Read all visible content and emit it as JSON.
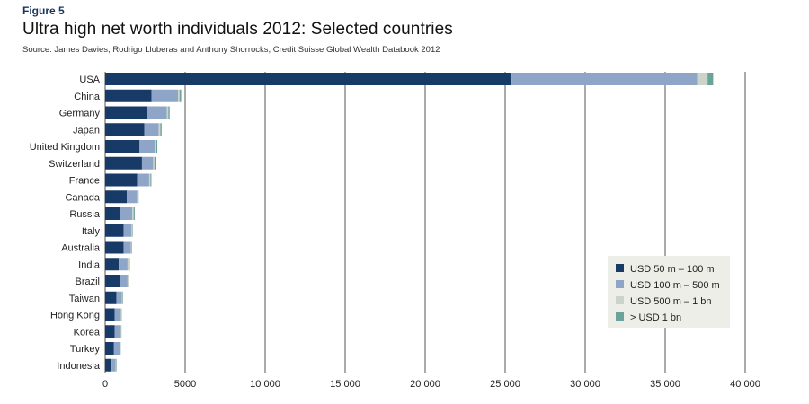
{
  "figure_label": "Figure 5",
  "title": "Ultra high net worth individuals 2012: Selected countries",
  "source": "Source: James Davies, Rodrigo Lluberas and Anthony Shorrocks, Credit Suisse Global Wealth Databook 2012",
  "colors": {
    "s1": "#173a66",
    "s2": "#8fa5c7",
    "s3": "#ccd3c9",
    "s4": "#6aa39a",
    "grid": "#555555",
    "legend_bg": "#eceee7"
  },
  "chart_data": {
    "type": "bar",
    "orientation": "horizontal",
    "stacked": true,
    "categories": [
      "USA",
      "China",
      "Germany",
      "Japan",
      "United Kingdom",
      "Switzerland",
      "France",
      "Canada",
      "Russia",
      "Italy",
      "Australia",
      "India",
      "Brazil",
      "Taiwan",
      "Hong Kong",
      "Korea",
      "Turkey",
      "Indonesia"
    ],
    "series": [
      {
        "name": "USD 50 m – 100 m",
        "values": [
          25400,
          2900,
          2600,
          2450,
          2150,
          2300,
          2000,
          1350,
          950,
          1150,
          1150,
          850,
          900,
          700,
          600,
          600,
          550,
          400
        ]
      },
      {
        "name": "USD 100 m – 500 m",
        "values": [
          11600,
          1650,
          1250,
          900,
          950,
          700,
          750,
          650,
          750,
          500,
          450,
          550,
          500,
          350,
          350,
          350,
          350,
          250
        ]
      },
      {
        "name": "USD 500 m – 1 bn",
        "values": [
          650,
          100,
          100,
          100,
          100,
          80,
          80,
          50,
          80,
          50,
          50,
          80,
          60,
          40,
          40,
          40,
          40,
          40
        ]
      },
      {
        "name": "> USD 1 bn",
        "values": [
          350,
          100,
          80,
          80,
          60,
          70,
          60,
          40,
          70,
          30,
          30,
          60,
          40,
          30,
          40,
          30,
          30,
          30
        ]
      }
    ],
    "xlim": [
      0,
      40000
    ],
    "xticks": [
      "0",
      "5000",
      "10 000",
      "15 000",
      "20 000",
      "25 000",
      "30 000",
      "35 000",
      "40 000"
    ],
    "grid": "vertical",
    "legend_position": "bottom-right"
  }
}
